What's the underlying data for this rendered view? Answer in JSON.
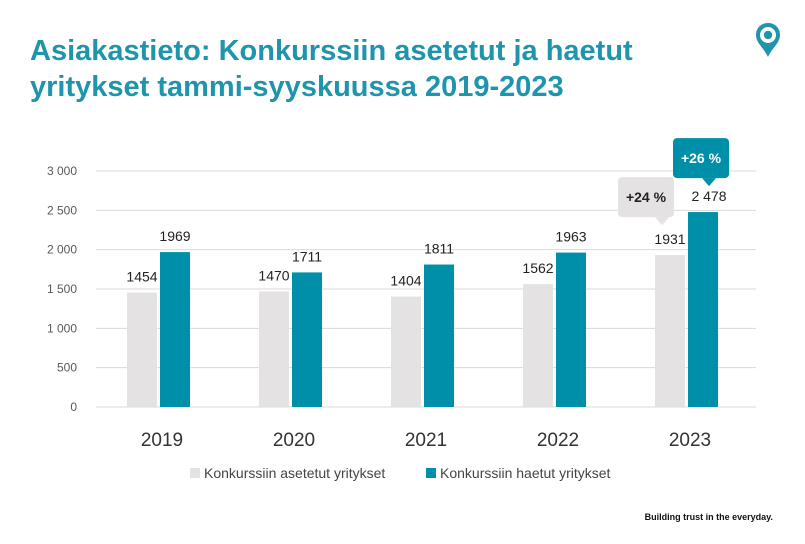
{
  "title": "Asiakastieto: Konkurssiin asetetut ja haetut yritykset tammi-syyskuussa 2019-2023",
  "tagline": "Building trust in the everyday.",
  "logo_icon": "location-pin-icon",
  "colors": {
    "title": "#1f94ad",
    "asetetut": "#e4e2e2",
    "haetut": "#008fa8",
    "callout_grey": "#e4e2e2",
    "callout_teal": "#008fa8",
    "axis_text": "#595959",
    "gridline": "#d9d9d9"
  },
  "chart_data": {
    "type": "bar",
    "categories": [
      "2019",
      "2020",
      "2021",
      "2022",
      "2023"
    ],
    "series": [
      {
        "name": "Konkurssiin asetetut yritykset",
        "values": [
          1454,
          1470,
          1404,
          1562,
          1931
        ],
        "labels": [
          "1454",
          "1470",
          "1404",
          "1562",
          "1931"
        ]
      },
      {
        "name": "Konkurssiin haetut yritykset",
        "values": [
          1969,
          1711,
          1811,
          1963,
          2478
        ],
        "labels": [
          "1969",
          "1711",
          "1811",
          "1963",
          "2 478"
        ]
      }
    ],
    "ylim": [
      0,
      3000
    ],
    "yticks": [
      0,
      500,
      1000,
      1500,
      2000,
      2500,
      3000
    ],
    "ytick_labels": [
      "0",
      "500",
      "1 000",
      "1 500",
      "2 000",
      "2 500",
      "3 000"
    ],
    "grid": true,
    "legend": "bottom",
    "annotations": [
      {
        "text": "+24 %",
        "category": "2023",
        "series": 0
      },
      {
        "text": "+26 %",
        "category": "2023",
        "series": 1
      }
    ]
  }
}
